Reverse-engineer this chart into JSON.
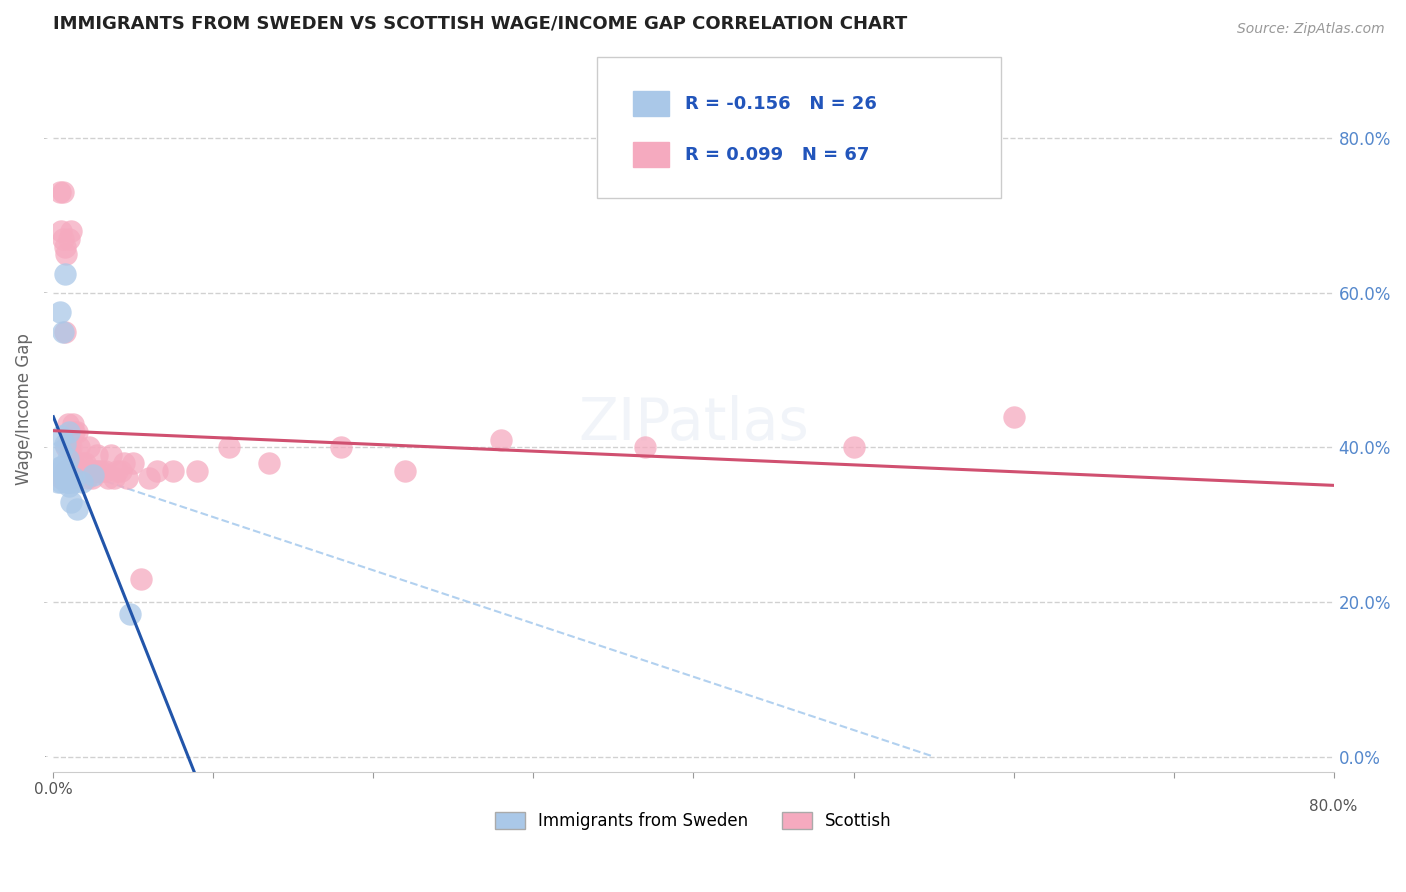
{
  "title": "IMMIGRANTS FROM SWEDEN VS SCOTTISH WAGE/INCOME GAP CORRELATION CHART",
  "source": "Source: ZipAtlas.com",
  "ylabel": "Wage/Income Gap",
  "legend_label1": "Immigrants from Sweden",
  "legend_label2": "Scottish",
  "r1": -0.156,
  "n1": 26,
  "r2": 0.099,
  "n2": 67,
  "xlim": [
    0.0,
    0.8
  ],
  "ylim": [
    -0.02,
    0.92
  ],
  "ytick_vals": [
    0.0,
    0.2,
    0.4,
    0.6,
    0.8
  ],
  "xtick_vals": [
    0.0,
    0.1,
    0.2,
    0.3,
    0.4,
    0.5,
    0.6,
    0.7,
    0.8
  ],
  "color_sweden": "#aac8e8",
  "color_scottish": "#f5aabf",
  "trendline_sweden": "#2255aa",
  "trendline_scottish": "#d05070",
  "refline_color": "#aaccee",
  "background": "#ffffff",
  "sweden_x": [
    0.003,
    0.004,
    0.004,
    0.005,
    0.005,
    0.005,
    0.005,
    0.006,
    0.006,
    0.007,
    0.007,
    0.007,
    0.008,
    0.008,
    0.009,
    0.009,
    0.01,
    0.01,
    0.01,
    0.011,
    0.012,
    0.013,
    0.015,
    0.018,
    0.025,
    0.048
  ],
  "sweden_y": [
    0.355,
    0.575,
    0.375,
    0.355,
    0.375,
    0.395,
    0.415,
    0.375,
    0.55,
    0.36,
    0.405,
    0.625,
    0.355,
    0.375,
    0.355,
    0.385,
    0.35,
    0.355,
    0.42,
    0.33,
    0.355,
    0.36,
    0.32,
    0.355,
    0.365,
    0.185
  ],
  "scottish_x": [
    0.004,
    0.005,
    0.005,
    0.006,
    0.006,
    0.006,
    0.007,
    0.007,
    0.007,
    0.008,
    0.008,
    0.008,
    0.009,
    0.009,
    0.009,
    0.01,
    0.01,
    0.01,
    0.01,
    0.011,
    0.011,
    0.011,
    0.012,
    0.012,
    0.013,
    0.013,
    0.014,
    0.014,
    0.015,
    0.015,
    0.016,
    0.016,
    0.017,
    0.018,
    0.019,
    0.02,
    0.021,
    0.022,
    0.023,
    0.024,
    0.025,
    0.026,
    0.027,
    0.028,
    0.03,
    0.032,
    0.034,
    0.036,
    0.038,
    0.04,
    0.042,
    0.044,
    0.046,
    0.05,
    0.055,
    0.06,
    0.065,
    0.075,
    0.09,
    0.11,
    0.135,
    0.18,
    0.22,
    0.28,
    0.37,
    0.5,
    0.6
  ],
  "scottish_y": [
    0.73,
    0.36,
    0.68,
    0.36,
    0.67,
    0.73,
    0.37,
    0.55,
    0.66,
    0.36,
    0.4,
    0.65,
    0.37,
    0.43,
    0.36,
    0.4,
    0.37,
    0.37,
    0.67,
    0.36,
    0.4,
    0.68,
    0.38,
    0.43,
    0.37,
    0.42,
    0.36,
    0.38,
    0.37,
    0.42,
    0.4,
    0.37,
    0.37,
    0.38,
    0.37,
    0.38,
    0.36,
    0.4,
    0.37,
    0.36,
    0.37,
    0.37,
    0.39,
    0.37,
    0.37,
    0.37,
    0.36,
    0.39,
    0.36,
    0.37,
    0.37,
    0.38,
    0.36,
    0.38,
    0.23,
    0.36,
    0.37,
    0.37,
    0.37,
    0.4,
    0.38,
    0.4,
    0.37,
    0.41,
    0.4,
    0.4,
    0.44
  ]
}
